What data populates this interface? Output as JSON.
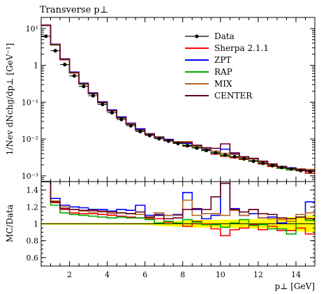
{
  "chart_data": [
    {
      "type": "line",
      "title": "Transverse p⊥",
      "xlabel": "p⊥ [GeV]",
      "ylabel": "1/Nev dNchg/dp⊥ [GeV⁻¹]",
      "yscale": "log",
      "xlim": [
        0.5,
        15.0
      ],
      "ylim": [
        0.0007,
        20
      ],
      "y_tick_labels": [
        "10⁻³",
        "10⁻²",
        "10⁻¹",
        "1",
        "10¹"
      ],
      "legend_position": "top-right",
      "bin_edges": [
        0.5,
        1.0,
        1.5,
        2.0,
        2.5,
        3.0,
        3.5,
        4.0,
        4.5,
        5.0,
        5.5,
        6.0,
        6.5,
        7.0,
        7.5,
        8.0,
        8.5,
        9.0,
        9.5,
        10.0,
        10.5,
        11.0,
        11.5,
        12.0,
        12.5,
        13.0,
        13.5,
        14.0,
        14.5,
        15.0
      ],
      "data": {
        "name": "Data",
        "x": [
          0.75,
          1.25,
          1.75,
          2.25,
          2.75,
          3.25,
          3.75,
          4.25,
          4.75,
          5.25,
          5.75,
          6.25,
          6.75,
          7.25,
          7.75,
          8.25,
          8.75,
          9.25,
          9.75,
          10.25,
          10.75,
          11.25,
          11.75,
          12.25,
          12.75,
          13.25,
          13.75,
          14.25,
          14.75
        ],
        "y": [
          6.2,
          2.5,
          1.05,
          0.52,
          0.27,
          0.15,
          0.087,
          0.052,
          0.034,
          0.023,
          0.016,
          0.0125,
          0.0102,
          0.0088,
          0.0076,
          0.0066,
          0.0057,
          0.0049,
          0.0042,
          0.0037,
          0.0033,
          0.0029,
          0.0025,
          0.0022,
          0.0019,
          0.0017,
          0.00155,
          0.0014,
          0.0013
        ]
      },
      "series": [
        {
          "name": "Sherpa 2.1.1",
          "color": "#ff0000",
          "values": [
            12.0,
            3.6,
            1.42,
            0.62,
            0.31,
            0.17,
            0.097,
            0.058,
            0.037,
            0.025,
            0.0172,
            0.0133,
            0.0108,
            0.009,
            0.0077,
            0.0064,
            0.0059,
            0.0049,
            0.0039,
            0.0034,
            0.0031,
            0.0028,
            0.0025,
            0.0021,
            0.0018,
            0.0016,
            0.00145,
            0.00138,
            0.00118
          ]
        },
        {
          "name": "ZPT",
          "color": "#0000ff",
          "values": [
            12.3,
            3.75,
            1.5,
            0.66,
            0.33,
            0.18,
            0.103,
            0.062,
            0.04,
            0.027,
            0.019,
            0.014,
            0.0114,
            0.0098,
            0.0084,
            0.0076,
            0.0066,
            0.0052,
            0.0046,
            0.0053,
            0.004,
            0.0033,
            0.0029,
            0.0024,
            0.0021,
            0.0018,
            0.00165,
            0.0015,
            0.00143
          ]
        },
        {
          "name": "RAP",
          "color": "#00aa00",
          "values": [
            12.1,
            3.6,
            1.44,
            0.63,
            0.31,
            0.168,
            0.096,
            0.058,
            0.037,
            0.025,
            0.0173,
            0.0136,
            0.0108,
            0.0092,
            0.008,
            0.0068,
            0.0059,
            0.0049,
            0.0042,
            0.0036,
            0.0033,
            0.0031,
            0.0026,
            0.0022,
            0.0019,
            0.0016,
            0.00145,
            0.0015,
            0.00138
          ]
        },
        {
          "name": "MIX",
          "color": "#bb6622",
          "values": [
            12.2,
            3.65,
            1.47,
            0.64,
            0.32,
            0.174,
            0.099,
            0.059,
            0.038,
            0.026,
            0.0178,
            0.0138,
            0.0113,
            0.0093,
            0.0084,
            0.0085,
            0.0063,
            0.0055,
            0.0047,
            0.0041,
            0.0038,
            0.0032,
            0.0029,
            0.0024,
            0.002,
            0.0018,
            0.0016,
            0.00155,
            0.0015
          ]
        },
        {
          "name": "CENTER",
          "color": "#660022",
          "values": [
            12.4,
            3.7,
            1.46,
            0.64,
            0.32,
            0.172,
            0.098,
            0.059,
            0.038,
            0.025,
            0.0178,
            0.0136,
            0.0112,
            0.0094,
            0.0082,
            0.008,
            0.0068,
            0.0058,
            0.0056,
            0.0074,
            0.0042,
            0.0033,
            0.003,
            0.0025,
            0.0021,
            0.0018,
            0.0016,
            0.0015,
            0.00138
          ]
        }
      ]
    },
    {
      "type": "line",
      "title": "",
      "xlabel": "p⊥ [GeV]",
      "ylabel": "MC/Data",
      "xlim": [
        0.5,
        15.0
      ],
      "ylim": [
        0.5,
        1.5
      ],
      "x_ticks": [
        2,
        4,
        6,
        8,
        10,
        12,
        14
      ],
      "y_ticks": [
        0.6,
        0.8,
        1.0,
        1.2,
        1.4
      ],
      "reference_line": 1.0,
      "band": {
        "color": "#ffff00",
        "lower": [
          0.99,
          0.99,
          0.99,
          0.99,
          0.99,
          0.99,
          0.99,
          0.99,
          0.99,
          0.99,
          0.99,
          0.985,
          0.975,
          0.97,
          0.965,
          0.96,
          0.955,
          0.955,
          0.955,
          0.95,
          0.95,
          0.95,
          0.945,
          0.945,
          0.94,
          0.935,
          0.92,
          0.91,
          0.9
        ],
        "upper": [
          1.01,
          1.01,
          1.01,
          1.01,
          1.01,
          1.01,
          1.01,
          1.01,
          1.01,
          1.01,
          1.01,
          1.015,
          1.025,
          1.03,
          1.035,
          1.04,
          1.045,
          1.045,
          1.045,
          1.05,
          1.05,
          1.05,
          1.055,
          1.055,
          1.06,
          1.065,
          1.08,
          1.09,
          1.1
        ]
      },
      "series": [
        {
          "name": "Sherpa 2.1.1",
          "color": "#ff0000",
          "values": [
            1.5,
            1.25,
            1.17,
            1.13,
            1.12,
            1.12,
            1.11,
            1.1,
            1.09,
            1.08,
            1.07,
            1.06,
            1.06,
            1.02,
            1.01,
            0.97,
            1.03,
            1.0,
            0.94,
            0.86,
            0.93,
            0.95,
            0.99,
            0.93,
            0.97,
            0.92,
            0.92,
            0.95,
            0.88
          ]
        },
        {
          "name": "ZPT",
          "color": "#0000ff",
          "values": [
            1.55,
            1.3,
            1.22,
            1.2,
            1.19,
            1.17,
            1.17,
            1.15,
            1.17,
            1.16,
            1.22,
            1.1,
            1.11,
            1.1,
            1.11,
            1.37,
            1.17,
            1.06,
            1.1,
            1.48,
            1.18,
            1.1,
            1.12,
            1.07,
            1.08,
            1.01,
            1.06,
            1.08,
            1.26
          ]
        },
        {
          "name": "RAP",
          "color": "#00aa00",
          "values": [
            1.55,
            1.22,
            1.13,
            1.11,
            1.1,
            1.09,
            1.08,
            1.07,
            1.08,
            1.07,
            1.07,
            1.05,
            1.01,
            1.03,
            1.01,
            1.05,
            1.02,
            0.99,
            0.99,
            0.96,
            1.01,
            1.05,
            0.98,
            0.99,
            0.94,
            0.94,
            0.88,
            1.08,
            1.04
          ]
        },
        {
          "name": "MIX",
          "color": "#bb6622",
          "values": [
            1.55,
            1.27,
            1.2,
            1.17,
            1.15,
            1.14,
            1.14,
            1.12,
            1.13,
            1.12,
            1.11,
            1.07,
            1.13,
            1.1,
            1.1,
            1.28,
            1.1,
            1.12,
            1.12,
            1.1,
            1.16,
            1.1,
            1.17,
            1.07,
            1.06,
            1.05,
            1.03,
            1.11,
            1.13
          ]
        },
        {
          "name": "CENTER",
          "color": "#660022",
          "values": [
            1.55,
            1.26,
            1.18,
            1.17,
            1.16,
            1.16,
            1.15,
            1.14,
            1.13,
            1.12,
            1.14,
            1.08,
            1.1,
            1.06,
            1.07,
            1.17,
            1.18,
            1.17,
            1.32,
            1.48,
            1.17,
            1.14,
            1.17,
            1.12,
            1.11,
            1.07,
            1.06,
            1.08,
            1.06
          ]
        }
      ]
    }
  ]
}
